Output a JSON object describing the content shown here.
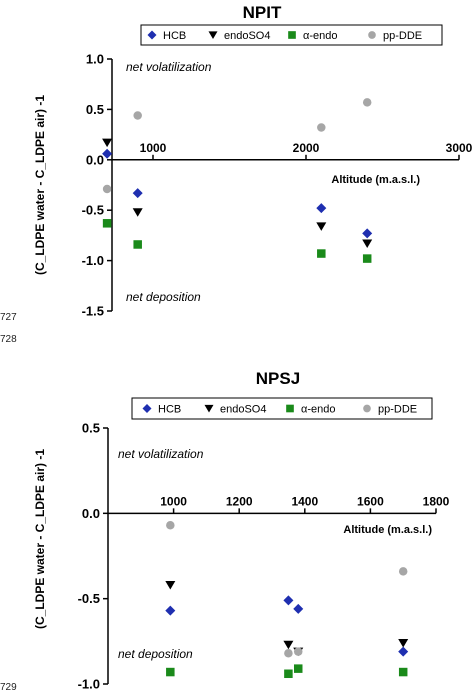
{
  "line_numbers": [
    "727",
    "728",
    "729"
  ],
  "colors": {
    "HCB": "#1f2fb0",
    "endoSO4": "#000000",
    "alpha_endo": "#1a8a1a",
    "pp_DDE": "#a6a6a6"
  },
  "icons": {
    "HCB": "diamond",
    "endoSO4": "down-triangle",
    "alpha_endo": "square",
    "pp_DDE": "circle"
  },
  "chart_data": [
    {
      "type": "scatter",
      "title": "NPIT",
      "ylabel": "(C_LDPE water - C_LDPE air) -1",
      "xlabel": "Altitude (m.a.s.l.)",
      "xlim": [
        0,
        3000
      ],
      "ylim": [
        -1.5,
        1.0
      ],
      "x_ticks": [
        "1000",
        "2000",
        "3000"
      ],
      "y_ticks": [
        "1.0",
        "0.5",
        "0.0",
        "-0.5",
        "-1.0",
        "-1.5"
      ],
      "x_axis_crosses_at_y": 0,
      "annotations": [
        "net volatilization",
        "net deposition"
      ],
      "legend": [
        "HCB",
        "endoSO4",
        "α-endo",
        "pp-DDE"
      ],
      "series": [
        {
          "name": "HCB",
          "marker": "diamond",
          "points": [
            [
              700,
              0.06
            ],
            [
              900,
              -0.33
            ],
            [
              2100,
              -0.48
            ],
            [
              2400,
              -0.73
            ]
          ]
        },
        {
          "name": "endoSO4",
          "marker": "down-triangle",
          "points": [
            [
              700,
              0.17
            ],
            [
              900,
              -0.52
            ],
            [
              2100,
              -0.66
            ],
            [
              2400,
              -0.83
            ]
          ]
        },
        {
          "name": "α-endo",
          "marker": "square",
          "points": [
            [
              700,
              -0.63
            ],
            [
              900,
              -0.84
            ],
            [
              2100,
              -0.93
            ],
            [
              2400,
              -0.98
            ]
          ]
        },
        {
          "name": "pp-DDE",
          "marker": "circle",
          "points": [
            [
              700,
              -0.29
            ],
            [
              900,
              0.44
            ],
            [
              2100,
              0.32
            ],
            [
              2400,
              0.57
            ]
          ]
        }
      ]
    },
    {
      "type": "scatter",
      "title": "NPSJ",
      "ylabel": "(C_LDPE water - C_LDPE air) -1",
      "xlabel": "Altitude (m.a.s.l.)",
      "xlim": [
        800,
        1800
      ],
      "ylim": [
        -1.0,
        0.5
      ],
      "x_ticks": [
        "1000",
        "1200",
        "1400",
        "1600",
        "1800"
      ],
      "y_ticks": [
        "0.5",
        "0.0",
        "-0.5",
        "-1.0"
      ],
      "x_axis_crosses_at_y": 0,
      "annotations": [
        "net volatilization",
        "net deposition"
      ],
      "legend": [
        "HCB",
        "endoSO4",
        "α-endo",
        "pp-DDE"
      ],
      "series": [
        {
          "name": "HCB",
          "marker": "diamond",
          "points": [
            [
              990,
              -0.57
            ],
            [
              1350,
              -0.51
            ],
            [
              1380,
              -0.56
            ],
            [
              1700,
              -0.81
            ]
          ]
        },
        {
          "name": "endoSO4",
          "marker": "down-triangle",
          "points": [
            [
              990,
              -0.42
            ],
            [
              1350,
              -0.77
            ],
            [
              1380,
              -0.81
            ],
            [
              1700,
              -0.76
            ]
          ]
        },
        {
          "name": "α-endo",
          "marker": "square",
          "points": [
            [
              990,
              -0.93
            ],
            [
              1350,
              -0.94
            ],
            [
              1380,
              -0.91
            ],
            [
              1700,
              -0.93
            ]
          ]
        },
        {
          "name": "pp-DDE",
          "marker": "circle",
          "points": [
            [
              990,
              -0.07
            ],
            [
              1350,
              -0.82
            ],
            [
              1380,
              -0.81
            ],
            [
              1700,
              -0.34
            ]
          ]
        }
      ]
    }
  ]
}
